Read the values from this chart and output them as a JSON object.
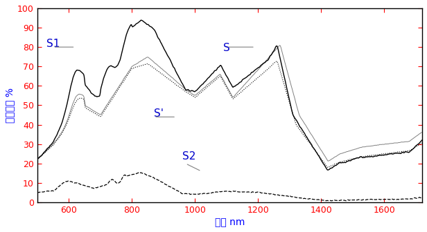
{
  "xlabel": "波长 nm",
  "ylabel": "漫反射率 %",
  "xlim": [
    500,
    1720
  ],
  "ylim": [
    0,
    100
  ],
  "yticks": [
    0,
    10,
    20,
    30,
    40,
    50,
    60,
    70,
    80,
    90,
    100
  ],
  "xticks": [
    600,
    800,
    1000,
    1200,
    1400,
    1600
  ],
  "background_color": "#ffffff",
  "label_S1": "S1",
  "label_S": "S",
  "label_Sp": "S'",
  "label_S2": "S2",
  "label_color_S1": "#0000cc",
  "label_color_S": "#0000cc",
  "label_color_Sp": "#0000cc",
  "label_color_S2": "#0000cc"
}
